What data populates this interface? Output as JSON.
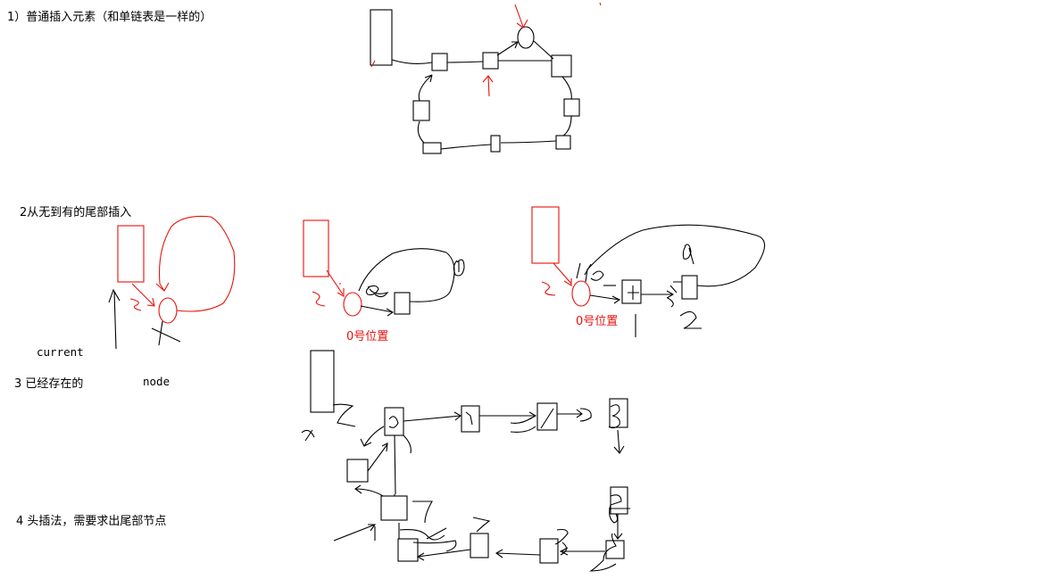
{
  "sections": [
    {
      "title": "1）普通插入元素（和单链表是一样的）"
    },
    {
      "title": "2从无到有的尾部插入"
    },
    {
      "title": "3 已经存在的"
    },
    {
      "title": "4 头插法，需要求出尾部节点"
    }
  ],
  "labels": {
    "current": "current",
    "node": "node",
    "pos0_a": "0号位置",
    "pos0_b": "0号位置"
  },
  "colors": {
    "ink": "#000000",
    "highlight": "#e8120c",
    "background": "#ffffff"
  }
}
